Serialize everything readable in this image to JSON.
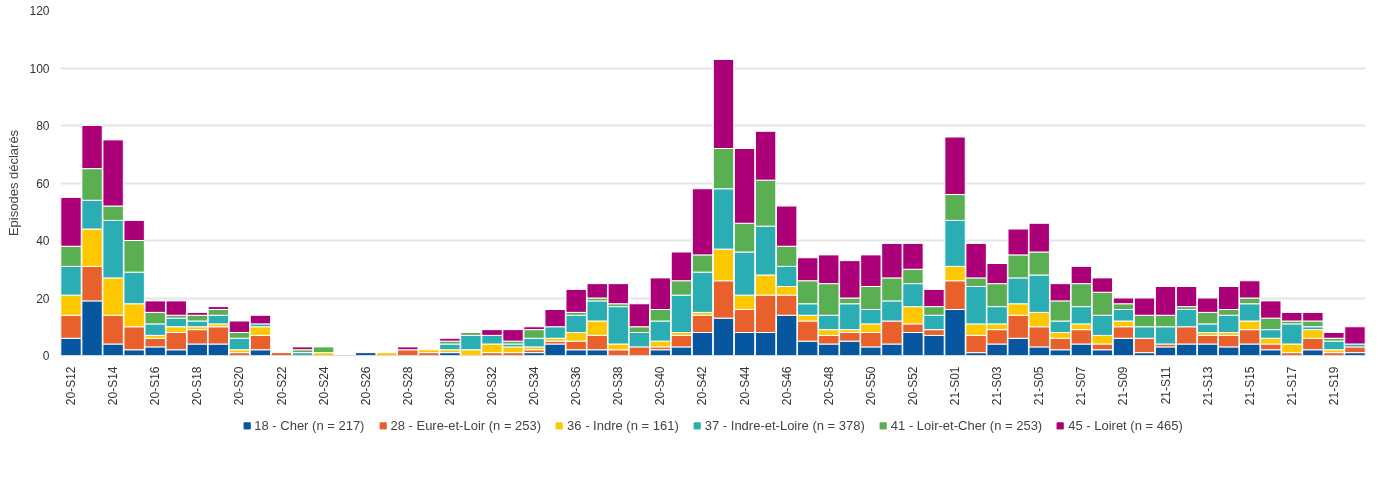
{
  "chart_data": {
    "type": "bar",
    "stacked": true,
    "ylabel": "Episodes déclarés",
    "categories": [
      "20-S12",
      null,
      "20-S14",
      null,
      "20-S16",
      null,
      "20-S18",
      null,
      "20-S20",
      null,
      "20-S22",
      null,
      "20-S24",
      null,
      "20-S26",
      null,
      "20-S28",
      null,
      "20-S30",
      null,
      "20-S32",
      null,
      "20-S34",
      null,
      "20-S36",
      null,
      "20-S38",
      null,
      "20-S40",
      null,
      "20-S42",
      null,
      "20-S44",
      null,
      "20-S46",
      null,
      "20-S48",
      null,
      "20-S50",
      null,
      "20-S52",
      null,
      "21-S01",
      null,
      "21-S03",
      null,
      "21-S05",
      null,
      "21-S07",
      null,
      "21-S09",
      null,
      "21-S11",
      null,
      "21-S13",
      null,
      "21-S15",
      null,
      "21-S17",
      null,
      "21-S19",
      null
    ],
    "series": [
      {
        "name": "18 - Cher (n = 217)",
        "color": "#0756a0",
        "values": [
          6,
          19,
          4,
          2,
          3,
          2,
          4,
          4,
          0,
          2,
          0,
          0,
          0,
          0,
          1,
          0,
          0,
          0,
          1,
          0,
          0,
          0,
          1,
          4,
          2,
          2,
          0,
          0,
          2,
          3,
          8,
          13,
          8,
          8,
          14,
          5,
          4,
          5,
          3,
          4,
          8,
          7,
          16,
          1,
          4,
          6,
          3,
          2,
          4,
          2,
          6,
          1,
          3,
          4,
          4,
          3,
          4,
          2,
          0,
          2,
          0,
          1
        ]
      },
      {
        "name": "28 - Eure-et-Loir (n = 253)",
        "color": "#e8612c",
        "values": [
          8,
          12,
          10,
          8,
          3,
          6,
          5,
          6,
          1,
          5,
          1,
          0,
          0,
          0,
          0,
          0,
          2,
          1,
          0,
          0,
          1,
          1,
          1,
          1,
          3,
          5,
          2,
          3,
          1,
          4,
          6,
          13,
          8,
          13,
          7,
          7,
          3,
          3,
          5,
          8,
          3,
          2,
          10,
          6,
          5,
          8,
          7,
          4,
          5,
          2,
          4,
          5,
          1,
          6,
          3,
          4,
          5,
          2,
          1,
          4,
          1,
          2
        ]
      },
      {
        "name": "36 - Indre (n = 161)",
        "color": "#fdc800",
        "values": [
          7,
          13,
          13,
          8,
          1,
          2,
          1,
          1,
          1,
          3,
          0,
          0,
          1,
          0,
          0,
          1,
          0,
          1,
          1,
          2,
          3,
          2,
          1,
          1,
          3,
          5,
          2,
          0,
          2,
          1,
          1,
          11,
          5,
          7,
          3,
          2,
          2,
          1,
          3,
          0,
          6,
          0,
          5,
          4,
          2,
          4,
          5,
          2,
          2,
          3,
          2,
          0,
          0,
          0,
          1,
          1,
          3,
          2,
          3,
          3,
          1,
          0
        ]
      },
      {
        "name": "37 - Indre-et-Loire (n = 378)",
        "color": "#2aaeb3",
        "values": [
          10,
          10,
          20,
          11,
          4,
          3,
          2,
          3,
          4,
          1,
          0,
          1,
          0,
          0,
          0,
          0,
          0,
          0,
          2,
          5,
          3,
          1,
          3,
          4,
          6,
          7,
          13,
          5,
          7,
          13,
          14,
          21,
          15,
          17,
          7,
          4,
          5,
          9,
          5,
          7,
          8,
          5,
          16,
          13,
          6,
          9,
          13,
          4,
          6,
          7,
          4,
          4,
          6,
          6,
          3,
          6,
          6,
          3,
          7,
          1,
          3,
          1
        ]
      },
      {
        "name": "41 - Loir-et-Cher (n = 253)",
        "color": "#5aaf52",
        "values": [
          7,
          11,
          5,
          11,
          4,
          1,
          2,
          2,
          2,
          0,
          0,
          1,
          2,
          0,
          0,
          0,
          0,
          0,
          1,
          1,
          0,
          1,
          3,
          0,
          1,
          1,
          1,
          2,
          4,
          5,
          6,
          14,
          10,
          16,
          7,
          8,
          11,
          2,
          8,
          8,
          5,
          3,
          9,
          3,
          8,
          8,
          8,
          7,
          8,
          8,
          2,
          4,
          4,
          1,
          4,
          2,
          2,
          4,
          1,
          2,
          1,
          0
        ]
      },
      {
        "name": "45 - Loiret (n = 465)",
        "color": "#ab0078",
        "values": [
          17,
          15,
          23,
          7,
          4,
          5,
          1,
          1,
          4,
          3,
          0,
          1,
          0,
          0,
          0,
          0,
          1,
          0,
          1,
          0,
          2,
          4,
          1,
          6,
          8,
          5,
          7,
          8,
          11,
          10,
          23,
          31,
          26,
          17,
          14,
          8,
          10,
          13,
          11,
          12,
          9,
          6,
          20,
          12,
          7,
          9,
          10,
          6,
          6,
          5,
          2,
          6,
          10,
          7,
          5,
          8,
          6,
          6,
          3,
          3,
          2,
          6
        ]
      }
    ],
    "ylim": [
      0,
      120
    ],
    "yticks": [
      0,
      20,
      40,
      60,
      80,
      100,
      120
    ],
    "grid": "y",
    "legend": "bottom"
  }
}
